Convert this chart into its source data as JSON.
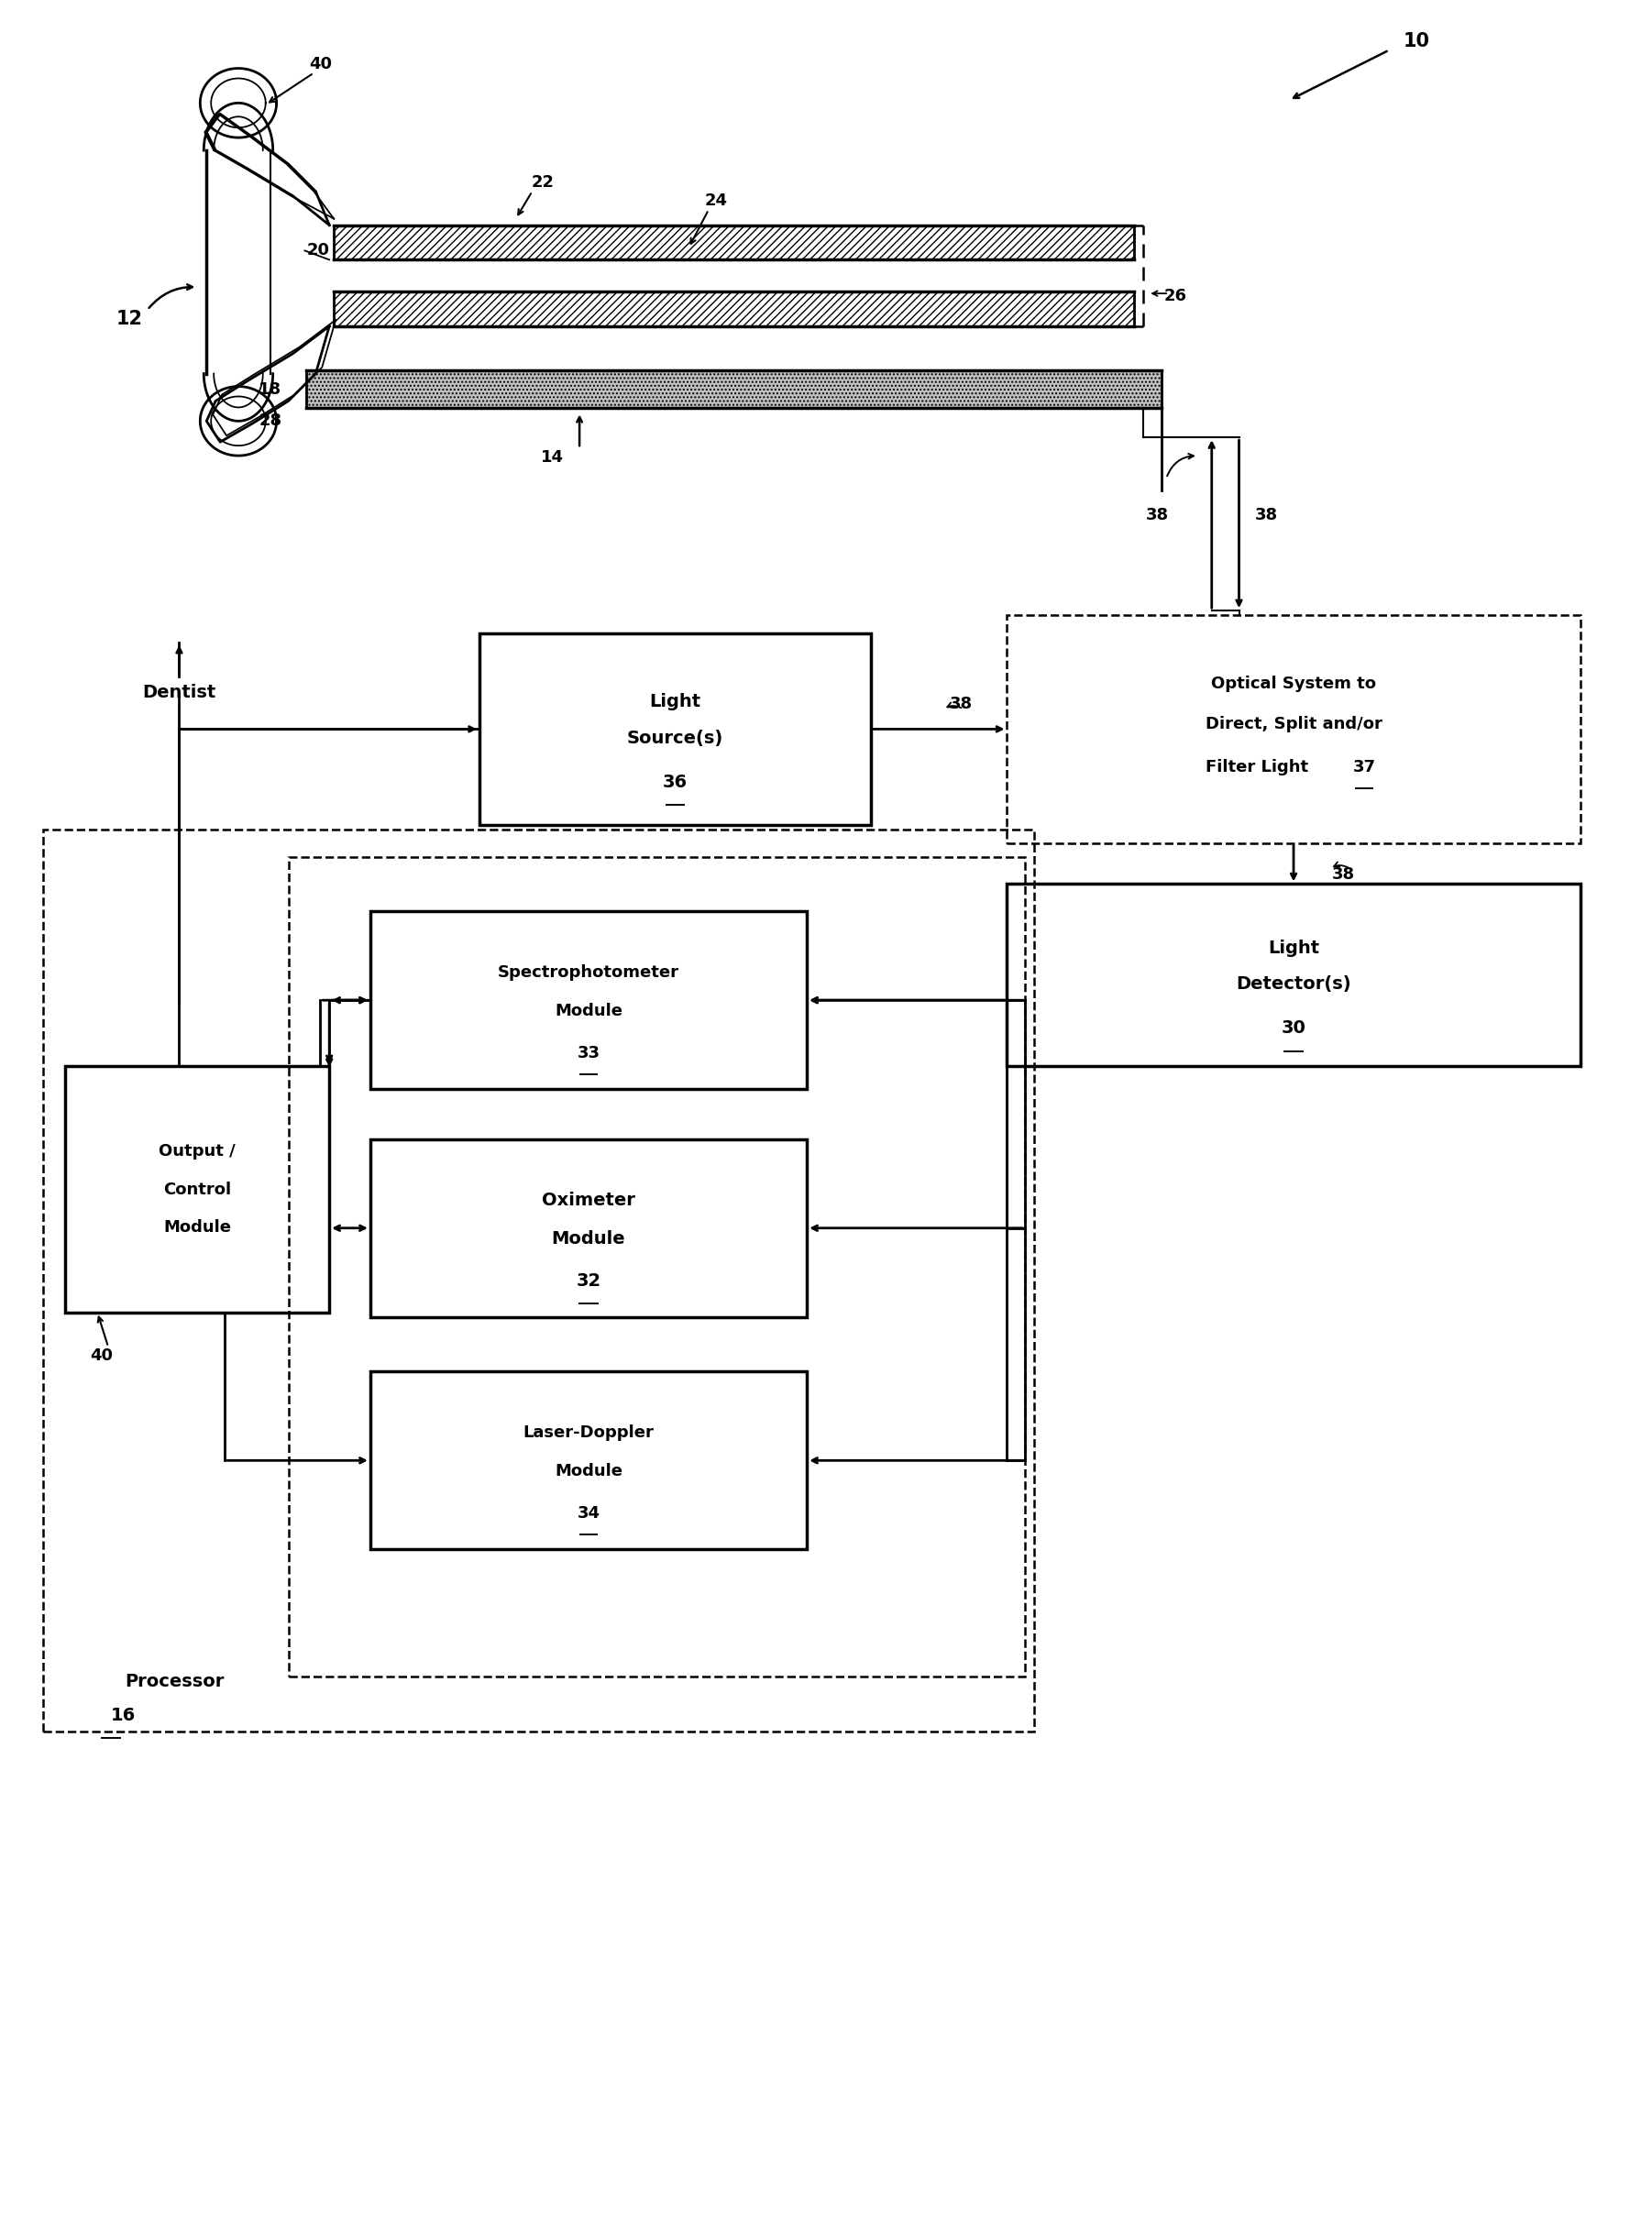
{
  "fig_width": 18.02,
  "fig_height": 24.23,
  "bg_color": "#ffffff",
  "refs": {
    "system": "10",
    "probe": "12",
    "fiber": "14",
    "clamp": "20",
    "upper_arm": "22",
    "lower_arm": "24",
    "bracket": "26",
    "lower_plate": "18",
    "lower_plate2": "28",
    "processor": "16",
    "light_source": "36",
    "optical_system": "37",
    "light_detector": "30",
    "spectro": "33",
    "oximeter": "32",
    "laser": "34",
    "output": "40",
    "signal": "38"
  }
}
